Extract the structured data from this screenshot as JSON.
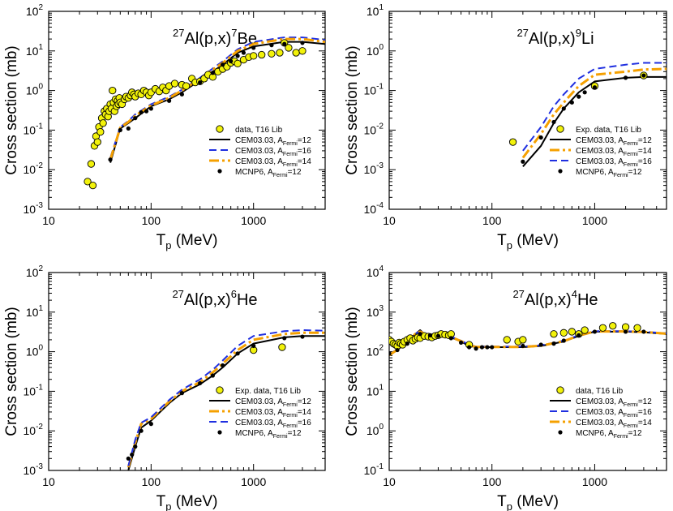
{
  "colors": {
    "cem12": "#000000",
    "cem16": "#1f2fe0",
    "cem14": "#f5a000",
    "exp": "#f2f20a",
    "mcnp": "#000000"
  },
  "chart_data": [
    {
      "type": "scatter",
      "title_parts": [
        "27",
        "Al(p,x)",
        "7",
        "Be"
      ],
      "xlabel": "T",
      "xlabel_sub": "p",
      "xlabel_unit": "(MeV)",
      "ylabel": "Cross section (mb)",
      "xlim": [
        10,
        5000
      ],
      "ylim": [
        0.001,
        100
      ],
      "xticks": [
        "10",
        "100",
        "1000"
      ],
      "yticks": [
        "10-3",
        "10-2",
        "10-1",
        "100",
        "101",
        "102"
      ],
      "legend_position": "bottom-right",
      "legend": [
        {
          "key": "exp",
          "label": "data, T16 Lib"
        },
        {
          "key": "cem12",
          "label": "CEM03.03, A",
          "sub": "Fermi",
          "suffix": "=12"
        },
        {
          "key": "cem16",
          "label": "CEM03.03, A",
          "sub": "Fermi",
          "suffix": "=16"
        },
        {
          "key": "cem14",
          "label": "CEM03.03, A",
          "sub": "Fermi",
          "suffix": "=14"
        },
        {
          "key": "mcnp",
          "label": "MCNP6, A",
          "sub": "Fermi",
          "suffix": "=12"
        }
      ],
      "series": [
        {
          "key": "cem12",
          "x": [
            40,
            50,
            60,
            70,
            100,
            150,
            200,
            300,
            500,
            700,
            1000,
            2000,
            3000,
            5000
          ],
          "values": [
            0.015,
            0.11,
            0.15,
            0.2,
            0.4,
            0.6,
            0.9,
            1.8,
            4.5,
            9,
            13,
            17,
            17,
            15
          ]
        },
        {
          "key": "cem16",
          "x": [
            40,
            50,
            60,
            70,
            100,
            150,
            200,
            300,
            500,
            700,
            1000,
            2000,
            3000,
            5000
          ],
          "values": [
            0.02,
            0.12,
            0.17,
            0.25,
            0.45,
            0.7,
            1.05,
            2.1,
            5.5,
            11,
            17,
            22,
            22,
            19
          ]
        },
        {
          "key": "cem14",
          "x": [
            40,
            50,
            60,
            70,
            100,
            150,
            200,
            300,
            500,
            700,
            1000,
            2000,
            3000,
            5000
          ],
          "values": [
            0.018,
            0.115,
            0.16,
            0.23,
            0.42,
            0.65,
            1.0,
            2.0,
            5.0,
            10,
            15,
            20,
            20,
            17
          ]
        }
      ],
      "exp": {
        "x": [
          24,
          26,
          27,
          28,
          29,
          30,
          31,
          32,
          33,
          34,
          35,
          36,
          37,
          38,
          39,
          40,
          41,
          42,
          43,
          44,
          45,
          46,
          47,
          48,
          49,
          50,
          52,
          55,
          57,
          60,
          63,
          65,
          68,
          70,
          75,
          80,
          85,
          90,
          95,
          100,
          110,
          120,
          130,
          140,
          150,
          170,
          200,
          220,
          250,
          270,
          300,
          330,
          360,
          400,
          450,
          500,
          550,
          600,
          650,
          700,
          800,
          900,
          1000,
          1200,
          1500,
          1800,
          2000,
          2200,
          2600,
          3000
        ],
        "y": [
          0.005,
          0.014,
          0.004,
          0.04,
          0.07,
          0.05,
          0.12,
          0.09,
          0.2,
          0.15,
          0.3,
          0.25,
          0.35,
          0.22,
          0.3,
          0.45,
          0.35,
          1.0,
          0.5,
          0.3,
          0.6,
          0.4,
          0.55,
          0.45,
          0.65,
          0.5,
          0.45,
          0.6,
          0.7,
          0.65,
          0.75,
          0.9,
          0.8,
          0.7,
          0.85,
          0.8,
          1.0,
          0.9,
          0.75,
          0.9,
          1.1,
          0.95,
          1.2,
          1.0,
          1.3,
          1.5,
          1.4,
          1.3,
          2.0,
          1.6,
          1.7,
          2.0,
          2.5,
          2.2,
          3.0,
          3.5,
          4.0,
          5.0,
          5.5,
          4.8,
          6.0,
          7.0,
          7.5,
          8.0,
          8.5,
          9.0,
          16,
          12,
          9,
          10
        ]
      },
      "mcnp": {
        "x": [
          40,
          50,
          60,
          70,
          80,
          90,
          100,
          150,
          200,
          300,
          400,
          500,
          600,
          700,
          800,
          1000,
          1500,
          2000,
          3000
        ],
        "y": [
          0.018,
          0.1,
          0.11,
          0.2,
          0.28,
          0.3,
          0.35,
          0.55,
          0.8,
          1.6,
          2.8,
          4.5,
          5.5,
          7.5,
          9,
          12,
          14,
          15,
          16
        ]
      }
    },
    {
      "type": "scatter",
      "title_parts": [
        "27",
        "Al(p,x)",
        "9",
        "Li"
      ],
      "xlabel": "T",
      "xlabel_sub": "p",
      "xlabel_unit": "(MeV)",
      "ylabel": "Cross section (mb)",
      "xlim": [
        10,
        5000
      ],
      "ylim": [
        0.0001,
        10
      ],
      "xticks": [
        "10",
        "100",
        "1000"
      ],
      "yticks": [
        "10-4",
        "10-3",
        "10-2",
        "10-1",
        "100",
        "101"
      ],
      "legend_position": "bottom-right",
      "legend": [
        {
          "key": "exp",
          "label": "Exp. data, T16 Lib"
        },
        {
          "key": "cem12",
          "label": "CEM03.03, A",
          "sub": "Fermi",
          "suffix": "=12"
        },
        {
          "key": "cem14",
          "label": "CEM03.03, A",
          "sub": "Fermi",
          "suffix": "=14"
        },
        {
          "key": "cem16",
          "label": "CEM03.03, A",
          "sub": "Fermi",
          "suffix": "=16"
        },
        {
          "key": "mcnp",
          "label": "MCNP6, A",
          "sub": "Fermi",
          "suffix": "=12"
        }
      ],
      "series": [
        {
          "key": "cem12",
          "x": [
            200,
            300,
            400,
            500,
            700,
            1000,
            2000,
            3000,
            5000
          ],
          "values": [
            0.0012,
            0.004,
            0.015,
            0.035,
            0.09,
            0.17,
            0.21,
            0.22,
            0.22
          ]
        },
        {
          "key": "cem14",
          "x": [
            200,
            300,
            400,
            500,
            700,
            1000,
            2000,
            3000,
            5000
          ],
          "values": [
            0.002,
            0.008,
            0.025,
            0.05,
            0.13,
            0.25,
            0.3,
            0.34,
            0.35
          ]
        },
        {
          "key": "cem16",
          "x": [
            200,
            300,
            400,
            500,
            700,
            1000,
            2000,
            3000,
            5000
          ],
          "values": [
            0.003,
            0.012,
            0.04,
            0.08,
            0.2,
            0.35,
            0.45,
            0.5,
            0.5
          ]
        }
      ],
      "exp": {
        "x": [
          160,
          1000,
          3000
        ],
        "y": [
          0.005,
          0.13,
          0.24
        ]
      },
      "mcnp": {
        "x": [
          200,
          300,
          400,
          500,
          600,
          700,
          800,
          1000,
          2000,
          3000
        ],
        "y": [
          0.0016,
          0.0065,
          0.016,
          0.035,
          0.05,
          0.07,
          0.09,
          0.12,
          0.21,
          0.24
        ]
      }
    },
    {
      "type": "scatter",
      "title_parts": [
        "27",
        "Al(p,x)",
        "6",
        "He"
      ],
      "xlabel": "T",
      "xlabel_sub": "p",
      "xlabel_unit": "(MeV)",
      "ylabel": "Cross section (mb)",
      "xlim": [
        10,
        5000
      ],
      "ylim": [
        0.001,
        100
      ],
      "xticks": [
        "10",
        "100",
        "1000"
      ],
      "yticks": [
        "10-3",
        "10-2",
        "10-1",
        "100",
        "101",
        "102"
      ],
      "legend_position": "bottom-right",
      "legend": [
        {
          "key": "exp",
          "label": "Exp. data, T16 Lib"
        },
        {
          "key": "cem12",
          "label": "CEM03.03, A",
          "sub": "Fermi",
          "suffix": "=12"
        },
        {
          "key": "cem14",
          "label": "CEM03.03, A",
          "sub": "Fermi",
          "suffix": "=14"
        },
        {
          "key": "cem16",
          "label": "CEM03.03, A",
          "sub": "Fermi",
          "suffix": "=16"
        },
        {
          "key": "mcnp",
          "label": "MCNP6, A",
          "sub": "Fermi",
          "suffix": "=12"
        }
      ],
      "series": [
        {
          "key": "cem12",
          "x": [
            60,
            70,
            80,
            100,
            150,
            200,
            300,
            400,
            500,
            700,
            1000,
            2000,
            3000,
            5000
          ],
          "values": [
            0.001,
            0.004,
            0.012,
            0.018,
            0.05,
            0.09,
            0.15,
            0.25,
            0.4,
            0.9,
            1.6,
            2.3,
            2.5,
            2.5
          ]
        },
        {
          "key": "cem14",
          "x": [
            60,
            70,
            80,
            100,
            150,
            200,
            300,
            400,
            500,
            700,
            1000,
            2000,
            3000,
            5000
          ],
          "values": [
            0.0012,
            0.005,
            0.015,
            0.02,
            0.055,
            0.1,
            0.17,
            0.3,
            0.5,
            1.1,
            2.0,
            2.8,
            3.0,
            3.0
          ]
        },
        {
          "key": "cem16",
          "x": [
            60,
            70,
            80,
            100,
            150,
            200,
            300,
            400,
            500,
            700,
            1000,
            2000,
            3000,
            5000
          ],
          "values": [
            0.0013,
            0.006,
            0.016,
            0.022,
            0.06,
            0.11,
            0.2,
            0.35,
            0.6,
            1.4,
            2.5,
            3.3,
            3.5,
            3.4
          ]
        }
      ],
      "exp": {
        "x": [
          1000,
          1900
        ],
        "y": [
          1.1,
          1.3
        ]
      },
      "mcnp": {
        "x": [
          60,
          65,
          70,
          80,
          100,
          200,
          300,
          400,
          500,
          700,
          1000,
          2000,
          3000
        ],
        "y": [
          0.002,
          0.0025,
          0.004,
          0.01,
          0.015,
          0.09,
          0.16,
          0.25,
          0.45,
          0.9,
          1.4,
          2.2,
          2.4
        ]
      }
    },
    {
      "type": "scatter",
      "title_parts": [
        "27",
        "Al(p,x)",
        "4",
        "He"
      ],
      "xlabel": "T",
      "xlabel_sub": "p",
      "xlabel_unit": "(MeV)",
      "ylabel": "Cross section (mb)",
      "xlim": [
        10,
        5000
      ],
      "ylim": [
        0.1,
        10000
      ],
      "xticks": [
        "10",
        "100",
        "1000"
      ],
      "yticks": [
        "10-1",
        "100",
        "101",
        "102",
        "103",
        "104"
      ],
      "legend_position": "bottom-right",
      "legend": [
        {
          "key": "exp",
          "label": "data, T16 Lib"
        },
        {
          "key": "cem12",
          "label": "CEM03.03, A",
          "sub": "Fermi",
          "suffix": "=12"
        },
        {
          "key": "cem16",
          "label": "CEM03.03, A",
          "sub": "Fermi",
          "suffix": "=16"
        },
        {
          "key": "cem14",
          "label": "CEM03.03, A",
          "sub": "Fermi",
          "suffix": "=14"
        },
        {
          "key": "mcnp",
          "label": "MCNP6, A",
          "sub": "Fermi",
          "suffix": "=12"
        }
      ],
      "series": [
        {
          "key": "cem12",
          "x": [
            10,
            12,
            15,
            18,
            20,
            22,
            25,
            30,
            40,
            50,
            60,
            70,
            100,
            200,
            300,
            500,
            700,
            1000,
            2000,
            3000,
            5000
          ],
          "values": [
            80,
            110,
            180,
            280,
            350,
            280,
            250,
            240,
            230,
            180,
            140,
            130,
            130,
            130,
            140,
            180,
            250,
            320,
            320,
            310,
            280
          ]
        },
        {
          "key": "cem16",
          "x": [
            10,
            12,
            15,
            18,
            20,
            22,
            25,
            30,
            40,
            50,
            60,
            70,
            100,
            200,
            300,
            500,
            700,
            1000,
            2000,
            3000,
            5000
          ],
          "values": [
            85,
            115,
            185,
            285,
            330,
            290,
            260,
            250,
            240,
            190,
            150,
            135,
            135,
            135,
            145,
            190,
            260,
            330,
            330,
            320,
            290
          ]
        },
        {
          "key": "cem14",
          "x": [
            10,
            12,
            15,
            18,
            20,
            22,
            25,
            30,
            40,
            50,
            60,
            70,
            100,
            200,
            300,
            500,
            700,
            1000,
            2000,
            3000,
            5000
          ],
          "values": [
            82,
            112,
            182,
            282,
            320,
            285,
            255,
            245,
            235,
            185,
            145,
            132,
            132,
            132,
            142,
            185,
            255,
            325,
            325,
            315,
            285
          ]
        }
      ],
      "exp": {
        "x": [
          10,
          10.5,
          11,
          11.5,
          12,
          12.5,
          13,
          13.5,
          14,
          15,
          16,
          17,
          18,
          19,
          20,
          22,
          24,
          26,
          28,
          30,
          32,
          35,
          38,
          40,
          60,
          140,
          180,
          200,
          400,
          500,
          600,
          700,
          800,
          1200,
          1500,
          2000,
          2600
        ],
        "y": [
          200,
          180,
          160,
          150,
          140,
          170,
          160,
          150,
          180,
          200,
          220,
          190,
          210,
          230,
          220,
          250,
          240,
          230,
          250,
          260,
          280,
          270,
          260,
          280,
          150,
          200,
          180,
          200,
          280,
          300,
          320,
          280,
          350,
          400,
          450,
          420,
          400
        ]
      },
      "mcnp": {
        "x": [
          10,
          12,
          15,
          20,
          25,
          30,
          40,
          50,
          60,
          70,
          80,
          90,
          100,
          200,
          300,
          400,
          500,
          700,
          1000,
          2000,
          3000
        ],
        "y": [
          90,
          110,
          160,
          280,
          260,
          250,
          220,
          170,
          130,
          120,
          130,
          130,
          130,
          140,
          150,
          160,
          190,
          260,
          320,
          320,
          320
        ]
      }
    }
  ]
}
